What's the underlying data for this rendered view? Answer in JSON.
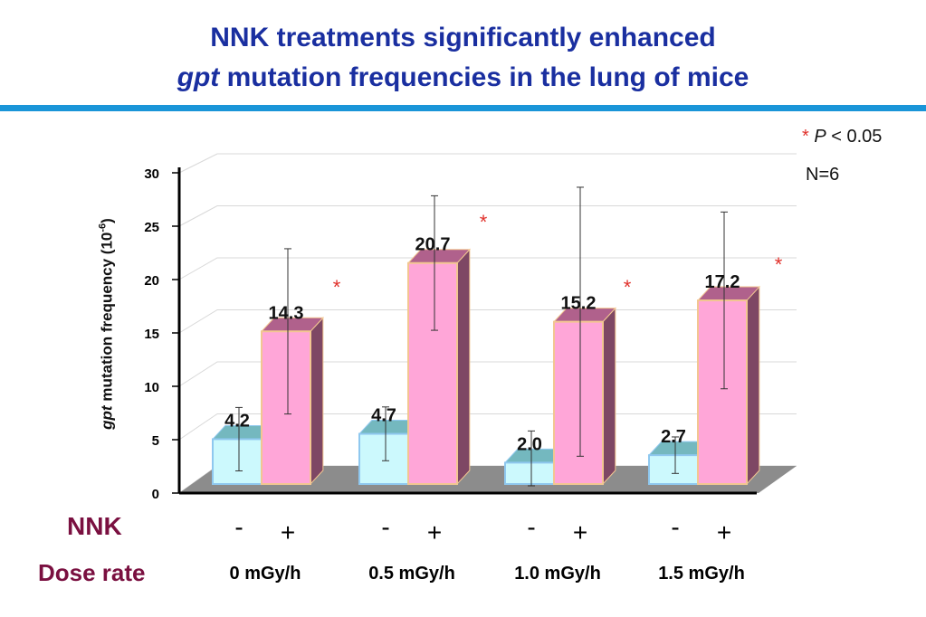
{
  "header": {
    "title_line1": "NNK treatments significantly enhanced",
    "title_line2_italic": "gpt",
    "title_line2_rest": "mutation frequencies in the lung of mice"
  },
  "legend": {
    "star": "*",
    "p_label": "P",
    "p_rest": "< 0.05",
    "n_label": "N=6"
  },
  "colors": {
    "title": "#1a2fa0",
    "rule": "#1a95d8",
    "nnk_minus": "#ccf9fd",
    "nnk_plus": "#ffa6d8",
    "significance": "#e0302a",
    "row_labels": "#7a1040"
  },
  "rows": {
    "nnk_label": "NNK",
    "dose_label": "Dose rate"
  },
  "chart_data": {
    "type": "bar",
    "style": "3d-grouped",
    "ylabel_italic": "gpt",
    "ylabel_rest": "mutation frequency (10",
    "ylabel_exp": "-6",
    "ylabel_close": ")",
    "ylim": [
      0,
      30
    ],
    "yticks": [
      0,
      5,
      10,
      15,
      20,
      25,
      30
    ],
    "grid": true,
    "groups": [
      "0 mGy/h",
      "0.5 mGy/h",
      "1.0 mGy/h",
      "1.5 mGy/h"
    ],
    "treatment_labels": [
      "-",
      "+"
    ],
    "series": [
      {
        "values": [
          4.2,
          4.7,
          2.0,
          2.7
        ],
        "labels": [
          "4.2",
          "4.7",
          "2.0",
          "2.7"
        ],
        "error": [
          3.3,
          2.8,
          3.3,
          1.9
        ]
      },
      {
        "values": [
          14.3,
          20.7,
          15.2,
          17.2
        ],
        "labels": [
          "14.3",
          "20.7",
          "15.2",
          "17.2"
        ],
        "error": [
          8.6,
          7.0,
          14.0,
          9.2
        ]
      }
    ],
    "significant": [
      true,
      true,
      true,
      true
    ],
    "significance_mark": "*"
  }
}
